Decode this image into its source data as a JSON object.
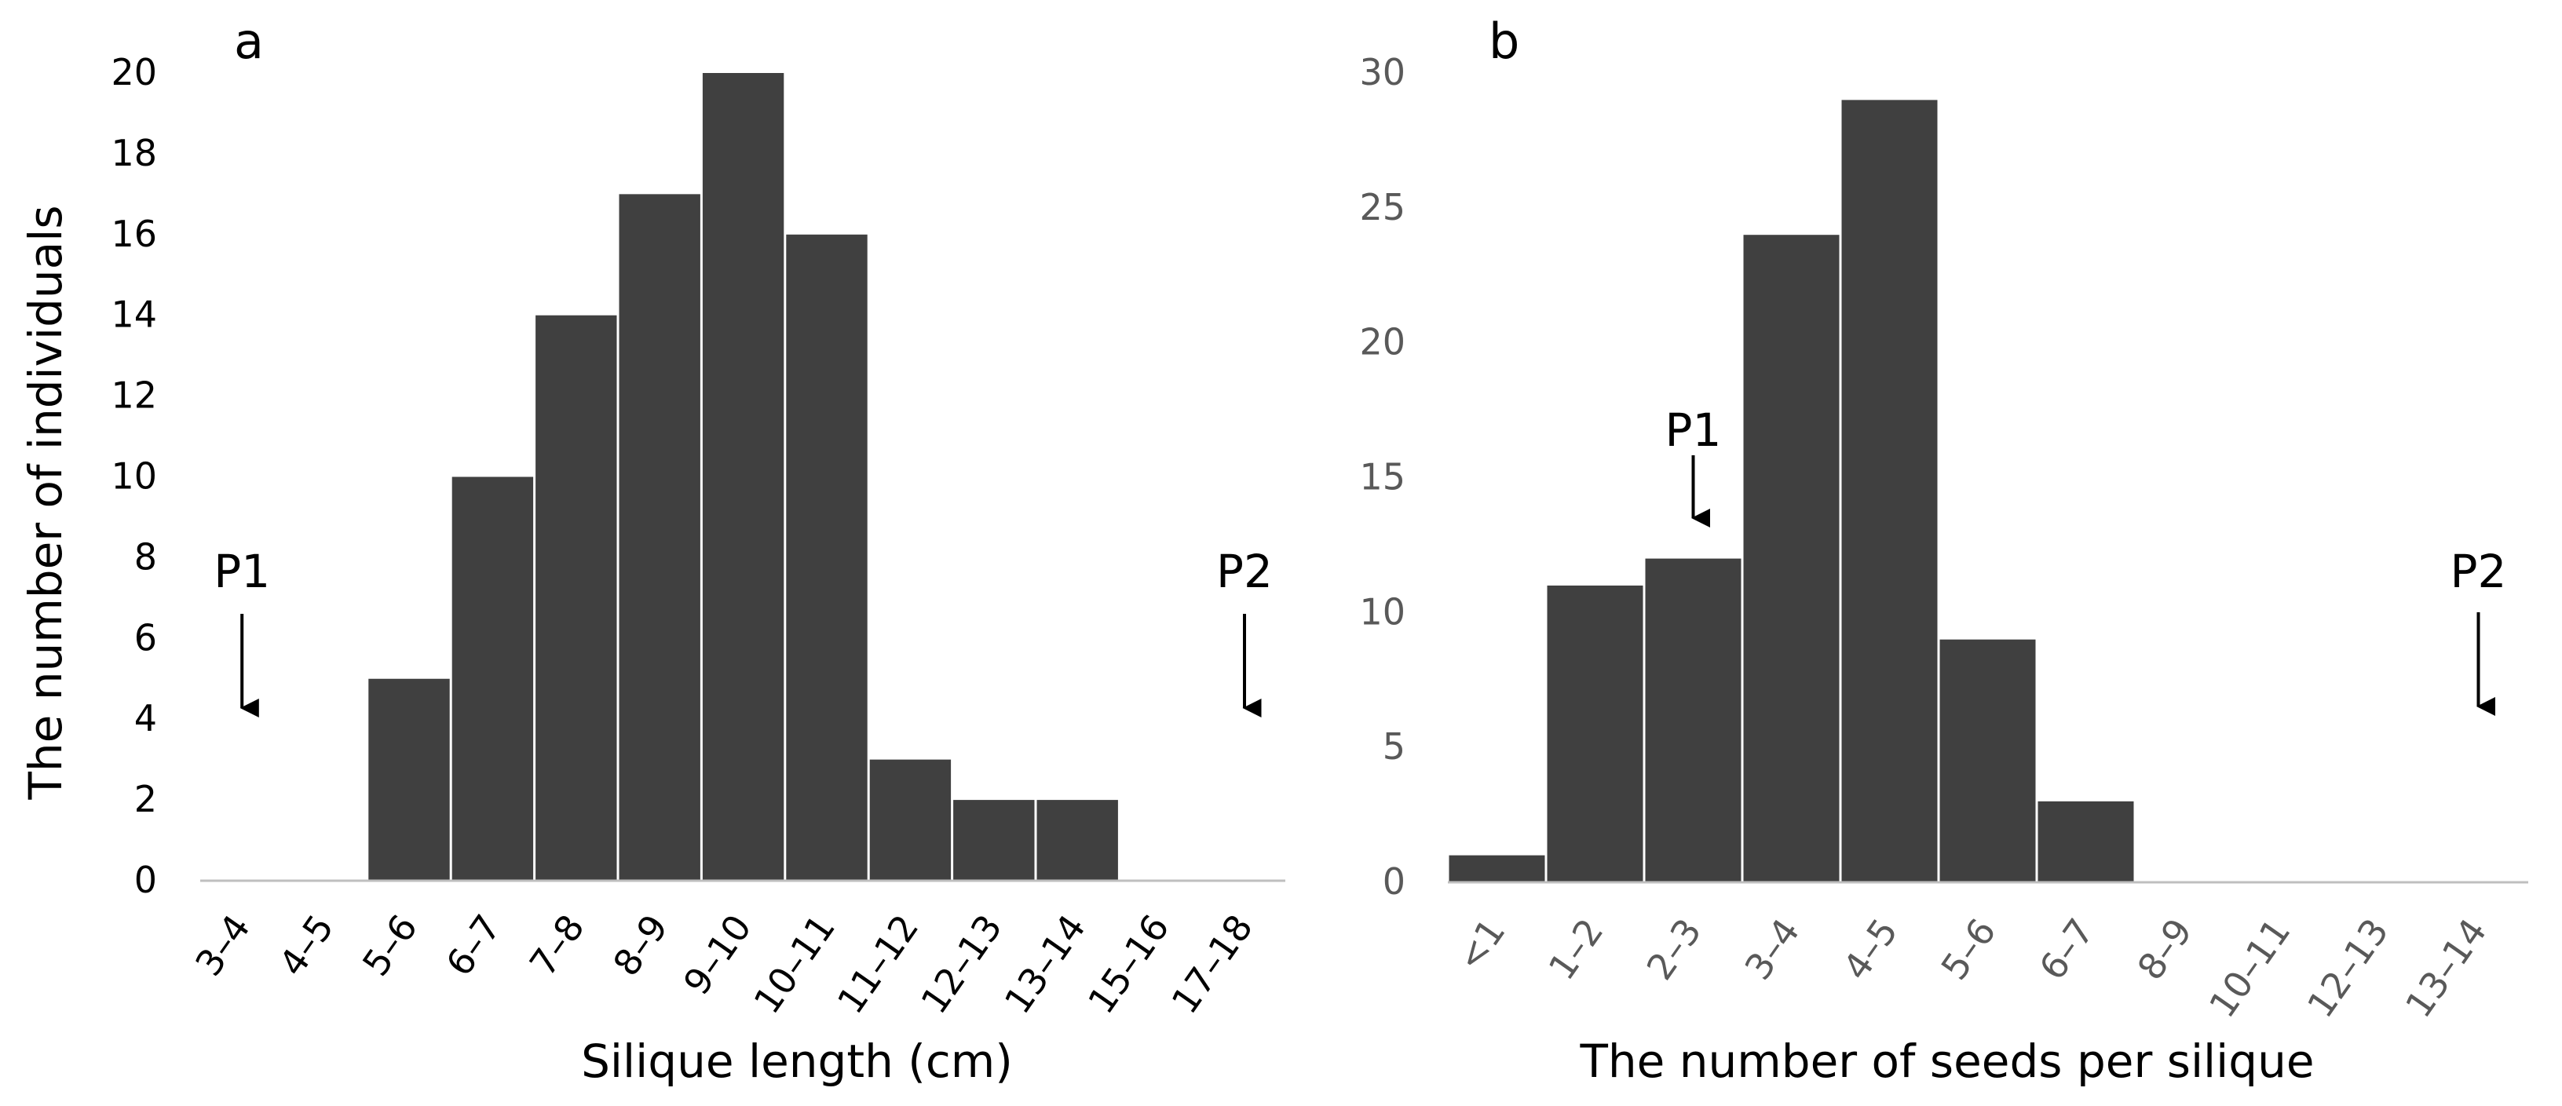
{
  "chart_data": [
    {
      "type": "bar",
      "panel_label": "a",
      "title": "",
      "xlabel": "Silique length (cm)",
      "ylabel": "The number of individuals",
      "categories": [
        "3–4",
        "4–5",
        "5–6",
        "6–7",
        "7–8",
        "8–9",
        "9–10",
        "10–11",
        "11–12",
        "12–13",
        "13–14",
        "15–16",
        "17–18"
      ],
      "values": [
        0,
        0,
        5,
        10,
        14,
        17,
        20,
        16,
        3,
        2,
        2,
        0,
        0
      ],
      "ylim": [
        0,
        20
      ],
      "yticks": [
        0,
        2,
        4,
        6,
        8,
        10,
        12,
        14,
        16,
        18,
        20
      ],
      "grid": false,
      "bar_color": "#404040",
      "tick_color": "#000000",
      "annotations": [
        {
          "text": "P1",
          "category": "3–4",
          "arrow": "down"
        },
        {
          "text": "P2",
          "category": "17–18",
          "arrow": "down"
        }
      ]
    },
    {
      "type": "bar",
      "panel_label": "b",
      "title": "",
      "xlabel": "The number of seeds per silique",
      "ylabel": "",
      "categories": [
        "<1",
        "1–2",
        "2–3",
        "3–4",
        "4–5",
        "5–6",
        "6–7",
        "8–9",
        "10–11",
        "12–13",
        "13–14"
      ],
      "values": [
        1,
        11,
        12,
        24,
        29,
        9,
        3,
        0,
        0,
        0,
        0
      ],
      "ylim": [
        0,
        30
      ],
      "yticks": [
        0,
        5,
        10,
        15,
        20,
        25,
        30
      ],
      "grid": false,
      "bar_color": "#404040",
      "tick_color": "#595959",
      "annotations": [
        {
          "text": "P1",
          "category": "2–3",
          "arrow": "down"
        },
        {
          "text": "P2",
          "category": "13–14",
          "arrow": "down"
        }
      ]
    }
  ]
}
